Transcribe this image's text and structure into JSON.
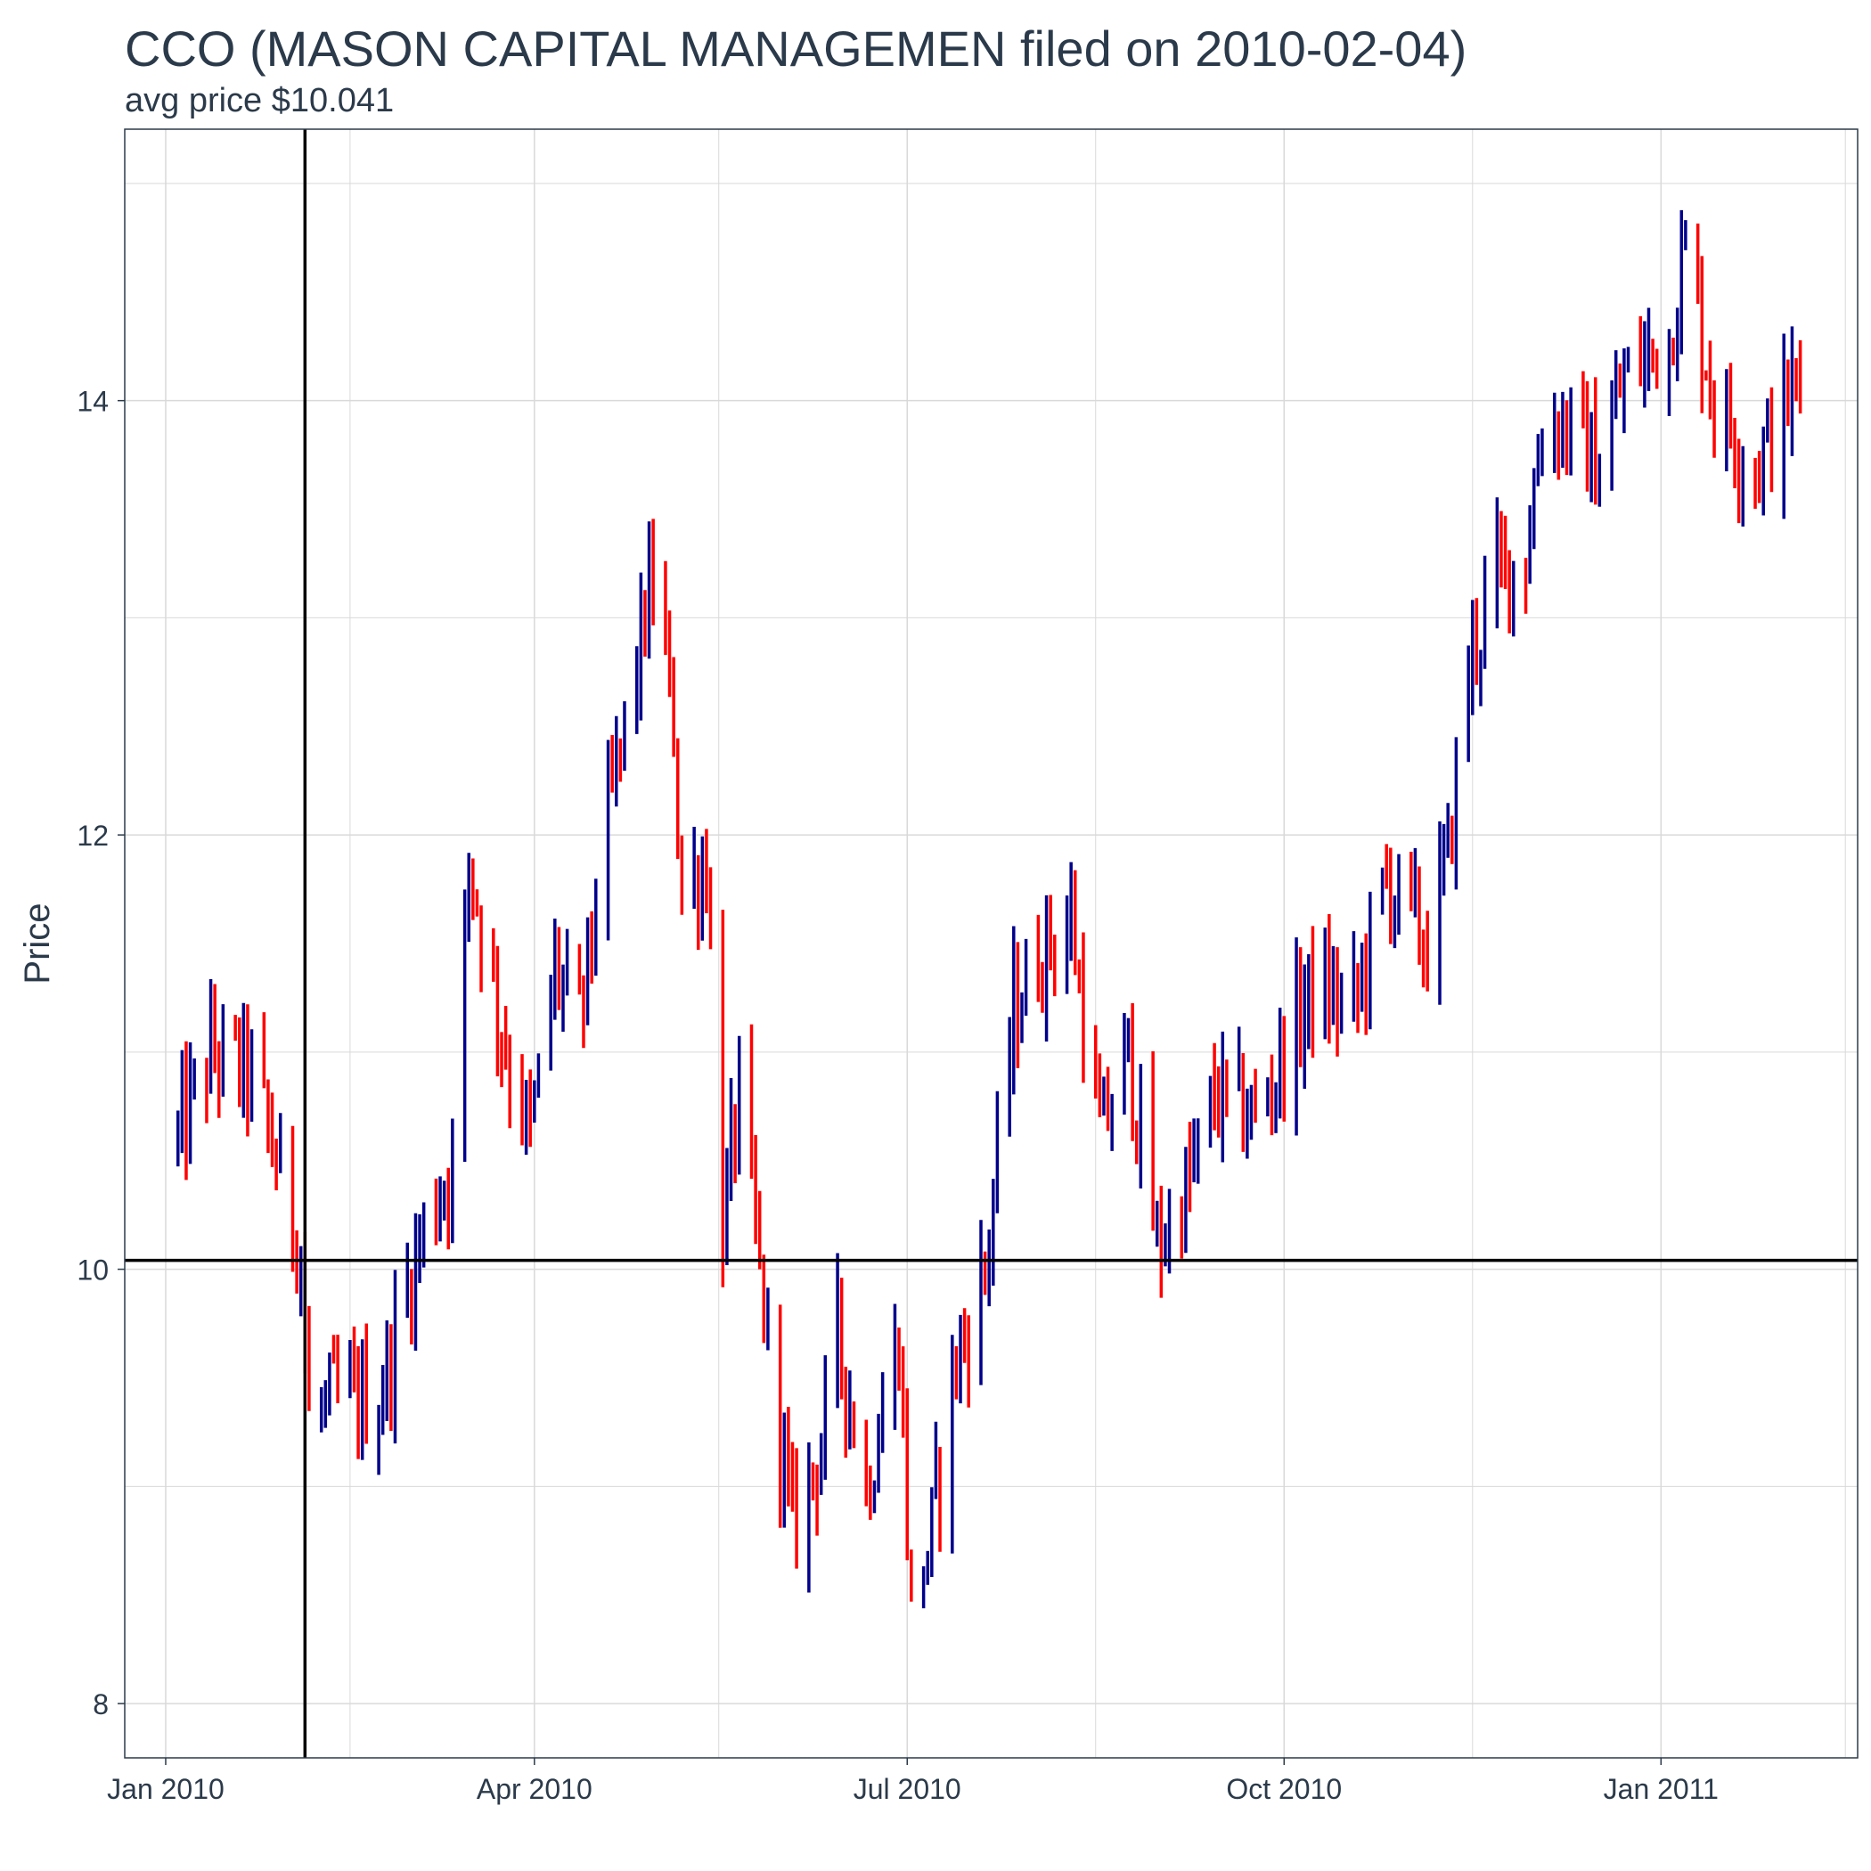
{
  "title": "CCO (MASON CAPITAL MANAGEMEN filed on 2010-02-04)",
  "subtitle": "avg price $10.041",
  "chart_data": {
    "type": "ohlc",
    "xlabel": "",
    "ylabel": "Price",
    "x_ticks": [
      "Jan 2010",
      "Apr 2010",
      "Jul 2010",
      "Oct 2010",
      "Jan 2011"
    ],
    "y_ticks": [
      8,
      10,
      12,
      14
    ],
    "xlim": [
      "2009-12-22",
      "2011-02-18"
    ],
    "ylim": [
      7.75,
      15.25
    ],
    "grid": true,
    "colors": {
      "up": "#00008b",
      "down": "#ff0000",
      "reference": "#000000"
    },
    "reference_lines": {
      "vertical_date": "2010-02-04",
      "horizontal_price": 10.041
    },
    "anchors": [
      [
        "2010-01-04",
        10.6
      ],
      [
        "2010-01-12",
        11.0
      ],
      [
        "2010-01-22",
        10.9
      ],
      [
        "2010-02-03",
        10.1
      ],
      [
        "2010-02-05",
        9.3
      ],
      [
        "2010-02-12",
        9.4
      ],
      [
        "2010-02-22",
        9.4
      ],
      [
        "2010-03-05",
        10.2
      ],
      [
        "2010-03-12",
        10.5
      ],
      [
        "2010-03-16",
        11.9
      ],
      [
        "2010-03-24",
        11.1
      ],
      [
        "2010-03-31",
        10.6
      ],
      [
        "2010-04-06",
        11.4
      ],
      [
        "2010-04-12",
        11.1
      ],
      [
        "2010-04-16",
        11.7
      ],
      [
        "2010-04-21",
        12.3
      ],
      [
        "2010-04-30",
        13.2
      ],
      [
        "2010-05-05",
        12.5
      ],
      [
        "2010-05-07",
        11.7
      ],
      [
        "2010-05-13",
        11.9
      ],
      [
        "2010-05-17",
        10.2
      ],
      [
        "2010-05-21",
        10.8
      ],
      [
        "2010-05-27",
        9.8
      ],
      [
        "2010-06-03",
        8.8
      ],
      [
        "2010-06-10",
        9.2
      ],
      [
        "2010-06-14",
        9.7
      ],
      [
        "2010-06-21",
        9.0
      ],
      [
        "2010-06-29",
        9.7
      ],
      [
        "2010-07-02",
        8.4
      ],
      [
        "2010-07-07",
        8.8
      ],
      [
        "2010-07-12",
        9.5
      ],
      [
        "2010-07-20",
        10.0
      ],
      [
        "2010-07-27",
        11.2
      ],
      [
        "2010-08-04",
        11.5
      ],
      [
        "2010-08-10",
        11.6
      ],
      [
        "2010-08-17",
        10.6
      ],
      [
        "2010-08-24",
        11.0
      ],
      [
        "2010-08-31",
        10.1
      ],
      [
        "2010-09-08",
        10.4
      ],
      [
        "2010-09-14",
        10.8
      ],
      [
        "2010-09-24",
        10.7
      ],
      [
        "2010-10-08",
        11.3
      ],
      [
        "2010-10-18",
        11.2
      ],
      [
        "2010-10-26",
        11.8
      ],
      [
        "2010-11-05",
        11.5
      ],
      [
        "2010-11-10",
        11.9
      ],
      [
        "2010-11-15",
        12.8
      ],
      [
        "2010-11-22",
        13.2
      ],
      [
        "2010-11-29",
        13.3
      ],
      [
        "2010-12-03",
        13.9
      ],
      [
        "2010-12-08",
        13.9
      ],
      [
        "2010-12-17",
        13.7
      ],
      [
        "2010-12-23",
        14.1
      ],
      [
        "2011-01-03",
        14.3
      ],
      [
        "2011-01-07",
        14.7
      ],
      [
        "2011-01-14",
        14.0
      ],
      [
        "2011-01-24",
        13.7
      ],
      [
        "2011-02-04",
        14.1
      ]
    ]
  }
}
